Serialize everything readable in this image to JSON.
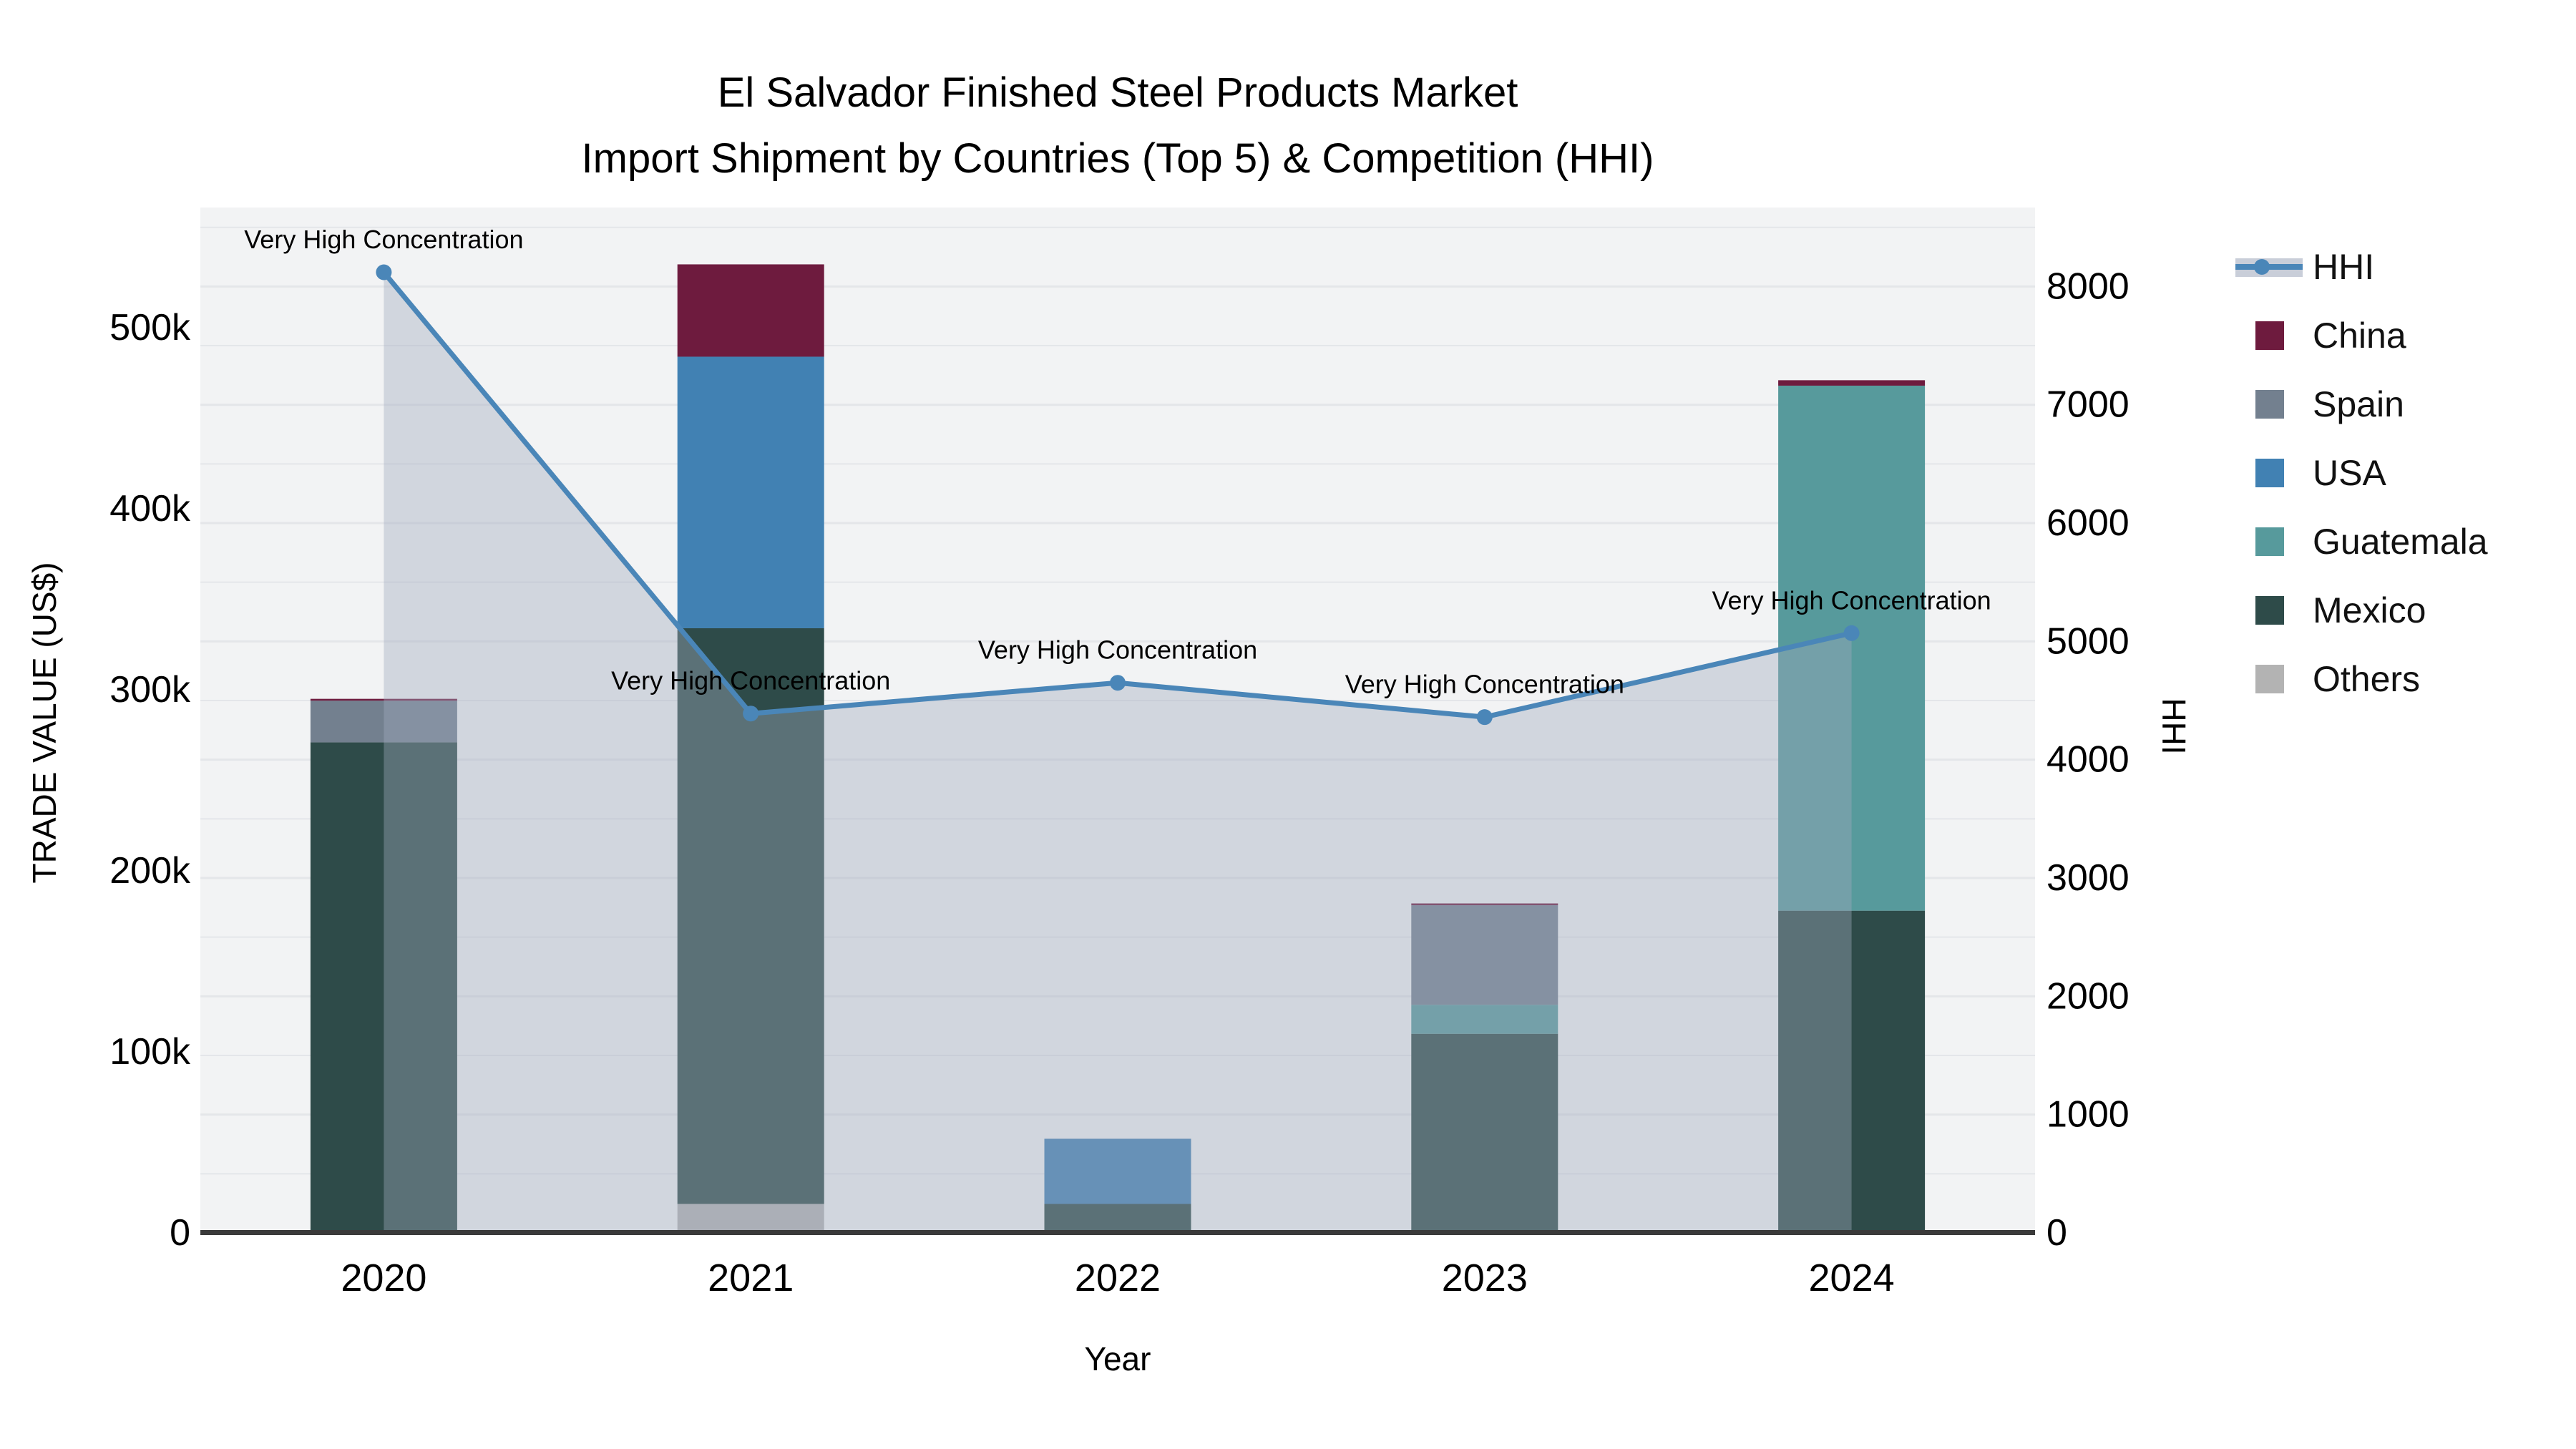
{
  "chart_data": {
    "type": "bar",
    "title": "El Salvador Finished Steel Products Market",
    "subtitle": "Import Shipment by Countries (Top 5) & Competition (HHI)",
    "x_axis": {
      "title": "Year",
      "categories": [
        "2020",
        "2021",
        "2022",
        "2023",
        "2024"
      ]
    },
    "left_axis": {
      "title": "TRADE VALUE (US$)",
      "tick_values": [
        0,
        100000,
        200000,
        300000,
        400000,
        500000
      ],
      "tick_labels": [
        "0",
        "100k",
        "200k",
        "300k",
        "400k",
        "500k"
      ],
      "range": [
        0,
        566000
      ]
    },
    "right_axis": {
      "title": "HHI",
      "tick_values": [
        0,
        1000,
        2000,
        3000,
        4000,
        5000,
        6000,
        7000,
        8000
      ],
      "tick_labels": [
        "0",
        "1000",
        "2000",
        "3000",
        "4000",
        "5000",
        "6000",
        "7000",
        "8000"
      ],
      "range": [
        0,
        8665
      ],
      "grid_step": 500
    },
    "stack_order_bottom_to_top": [
      "Others",
      "Mexico",
      "Guatemala",
      "USA",
      "Spain",
      "China"
    ],
    "series": [
      {
        "name": "Others",
        "values": [
          0,
          16000,
          0,
          0,
          0
        ]
      },
      {
        "name": "Mexico",
        "values": [
          271000,
          318000,
          16000,
          110000,
          178000
        ]
      },
      {
        "name": "Guatemala",
        "values": [
          0,
          0,
          0,
          16000,
          290000
        ]
      },
      {
        "name": "USA",
        "values": [
          0,
          150000,
          36000,
          0,
          0
        ]
      },
      {
        "name": "Spain",
        "values": [
          23000,
          0,
          0,
          55000,
          0
        ]
      },
      {
        "name": "China",
        "values": [
          1000,
          51000,
          0,
          1000,
          3000
        ]
      }
    ],
    "hhi": {
      "name": "HHI",
      "values": [
        8120,
        4390,
        4650,
        4360,
        5070
      ],
      "annotation_text": "Very High Concentration",
      "annotations": [
        "Very High Concentration",
        "Very High Concentration",
        "Very High Concentration",
        "Very High Concentration",
        "Very High Concentration"
      ]
    },
    "legend": [
      "HHI",
      "China",
      "Spain",
      "USA",
      "Guatemala",
      "Mexico",
      "Others"
    ],
    "legend_position": "right",
    "grid": true,
    "colors": {
      "China": "#6E1B3E",
      "Spain": "#73808F",
      "USA": "#4181B3",
      "Guatemala": "#579A9C",
      "Mexico": "#2E4B49",
      "Others": "#B3B3B3",
      "hhi_line": "#4A86B8",
      "hhi_fill": "rgba(160,170,190,0.40)",
      "plot_background": "#F2F3F4",
      "gridline": "#E4E6E9",
      "axis_line": "#3A3A3A",
      "text": "#000000"
    }
  }
}
